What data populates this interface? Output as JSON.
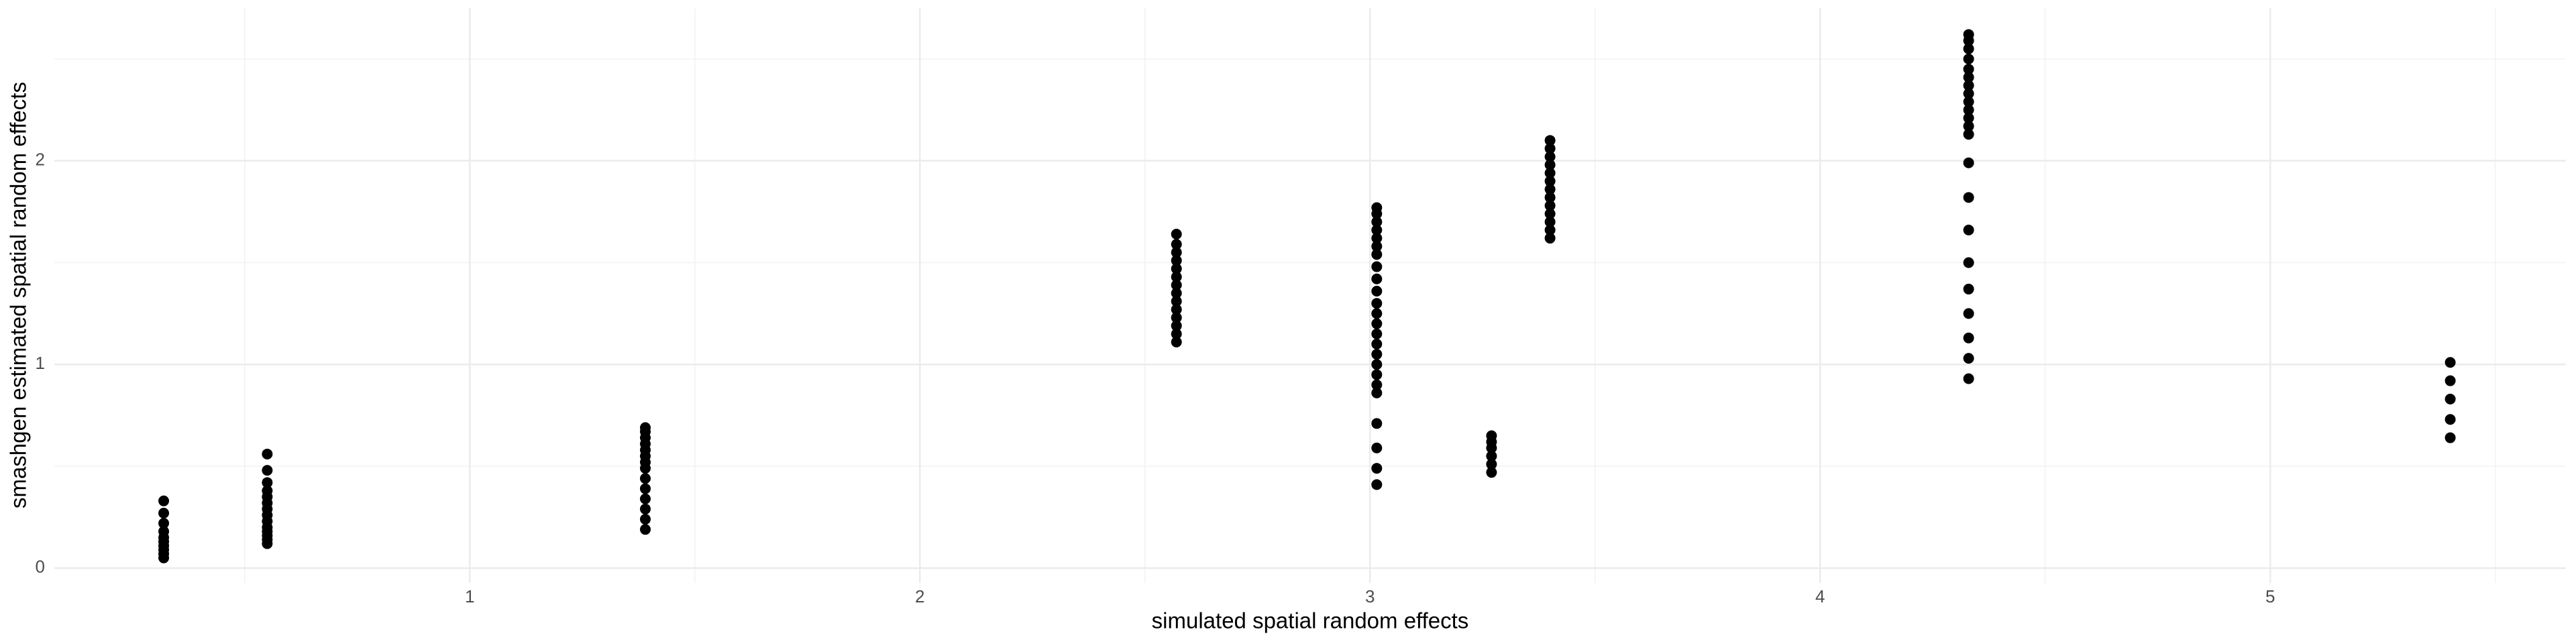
{
  "chart_data": {
    "type": "scatter",
    "x_label": "simulated spatial random effects",
    "y_label": "smashgen estimated spatial random effects",
    "color": "#000000",
    "xlim": [
      0.077,
      5.657
    ],
    "ylim": [
      -0.073,
      2.75
    ],
    "xticks": [
      1,
      2,
      3,
      4,
      5
    ],
    "yticks": [
      0,
      1,
      2
    ],
    "xminor": [
      0.5,
      1.5,
      2.5,
      3.5,
      4.5,
      5.5
    ],
    "yminor": [
      0.5,
      1.5,
      2.5
    ],
    "grid": true,
    "x": [
      0.32,
      0.32,
      0.32,
      0.32,
      0.32,
      0.32,
      0.32,
      0.32,
      0.32,
      0.32,
      0.55,
      0.55,
      0.55,
      0.55,
      0.55,
      0.55,
      0.55,
      0.55,
      0.55,
      0.55,
      0.55,
      0.55,
      0.55,
      0.55,
      1.39,
      1.39,
      1.39,
      1.39,
      1.39,
      1.39,
      1.39,
      1.39,
      1.39,
      1.39,
      1.39,
      1.39,
      1.39,
      1.39,
      2.57,
      2.57,
      2.57,
      2.57,
      2.57,
      2.57,
      2.57,
      2.57,
      2.57,
      2.57,
      2.57,
      2.57,
      2.57,
      2.57,
      3.015,
      3.015,
      3.015,
      3.015,
      3.015,
      3.015,
      3.015,
      3.015,
      3.015,
      3.015,
      3.015,
      3.015,
      3.015,
      3.015,
      3.015,
      3.015,
      3.015,
      3.015,
      3.015,
      3.015,
      3.015,
      3.015,
      3.015,
      3.015,
      3.27,
      3.27,
      3.27,
      3.27,
      3.27,
      3.27,
      3.4,
      3.4,
      3.4,
      3.4,
      3.4,
      3.4,
      3.4,
      3.4,
      3.4,
      3.4,
      3.4,
      3.4,
      3.4,
      4.33,
      4.33,
      4.33,
      4.33,
      4.33,
      4.33,
      4.33,
      4.33,
      4.33,
      4.33,
      4.33,
      4.33,
      4.33,
      4.33,
      4.33,
      4.33,
      4.33,
      4.33,
      4.33,
      4.33,
      4.33,
      4.33,
      5.4,
      5.4,
      5.4,
      5.4,
      5.4
    ],
    "y": [
      0.05,
      0.07,
      0.09,
      0.11,
      0.13,
      0.15,
      0.18,
      0.22,
      0.27,
      0.33,
      0.12,
      0.14,
      0.16,
      0.18,
      0.2,
      0.23,
      0.26,
      0.29,
      0.32,
      0.35,
      0.38,
      0.42,
      0.48,
      0.56,
      0.19,
      0.24,
      0.29,
      0.34,
      0.39,
      0.44,
      0.49,
      0.52,
      0.55,
      0.58,
      0.61,
      0.64,
      0.67,
      0.69,
      1.11,
      1.15,
      1.19,
      1.23,
      1.27,
      1.31,
      1.35,
      1.39,
      1.43,
      1.47,
      1.51,
      1.55,
      1.59,
      1.64,
      0.41,
      0.49,
      0.59,
      0.71,
      0.86,
      0.9,
      0.95,
      1.0,
      1.05,
      1.1,
      1.15,
      1.2,
      1.25,
      1.3,
      1.36,
      1.42,
      1.48,
      1.54,
      1.58,
      1.62,
      1.66,
      1.7,
      1.74,
      1.77,
      0.47,
      0.51,
      0.55,
      0.59,
      0.62,
      0.65,
      1.62,
      1.66,
      1.7,
      1.74,
      1.78,
      1.82,
      1.86,
      1.9,
      1.94,
      1.98,
      2.02,
      2.06,
      2.1,
      0.93,
      1.03,
      1.13,
      1.25,
      1.37,
      1.5,
      1.66,
      1.82,
      1.99,
      2.13,
      2.17,
      2.21,
      2.25,
      2.29,
      2.33,
      2.37,
      2.41,
      2.45,
      2.5,
      2.55,
      2.59,
      2.62,
      0.64,
      0.73,
      0.83,
      0.92,
      1.01
    ]
  }
}
